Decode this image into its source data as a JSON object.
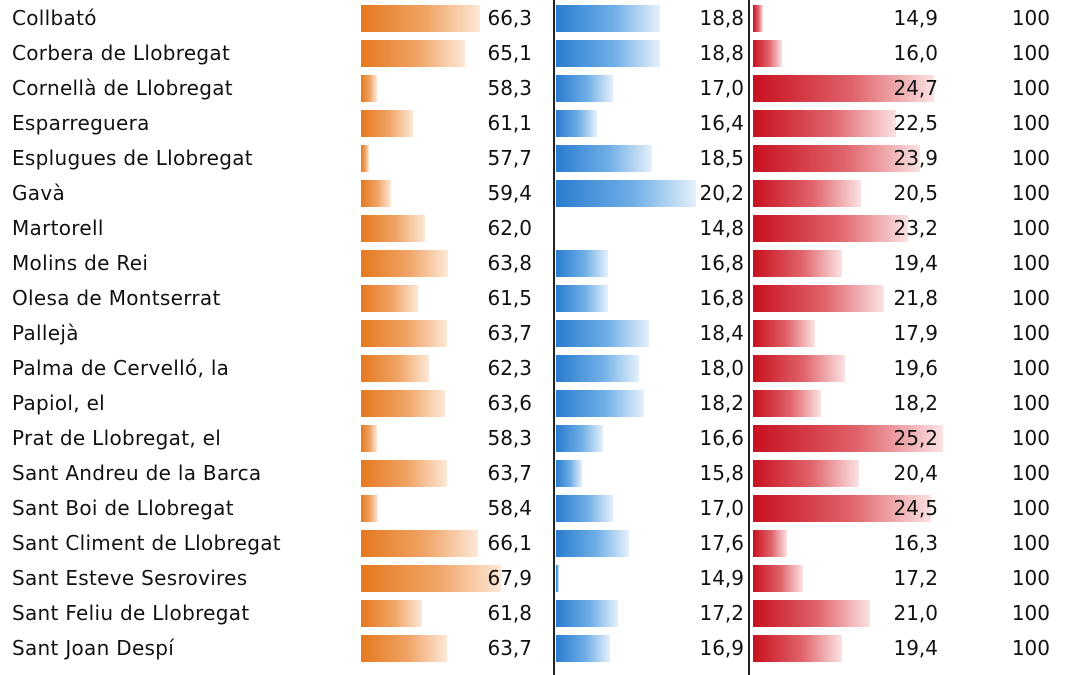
{
  "table": {
    "rows": [
      {
        "name": "Collbató",
        "c1": "66,3",
        "c2": "18,8",
        "c3": "14,9",
        "c4": "100"
      },
      {
        "name": "Corbera de Llobregat",
        "c1": "65,1",
        "c2": "18,8",
        "c3": "16,0",
        "c4": "100"
      },
      {
        "name": "Cornellà de Llobregat",
        "c1": "58,3",
        "c2": "17,0",
        "c3": "24,7",
        "c4": "100"
      },
      {
        "name": "Esparreguera",
        "c1": "61,1",
        "c2": "16,4",
        "c3": "22,5",
        "c4": "100"
      },
      {
        "name": "Esplugues de Llobregat",
        "c1": "57,7",
        "c2": "18,5",
        "c3": "23,9",
        "c4": "100"
      },
      {
        "name": "Gavà",
        "c1": "59,4",
        "c2": "20,2",
        "c3": "20,5",
        "c4": "100"
      },
      {
        "name": "Martorell",
        "c1": "62,0",
        "c2": "14,8",
        "c3": "23,2",
        "c4": "100"
      },
      {
        "name": "Molins de Rei",
        "c1": "63,8",
        "c2": "16,8",
        "c3": "19,4",
        "c4": "100"
      },
      {
        "name": "Olesa de Montserrat",
        "c1": "61,5",
        "c2": "16,8",
        "c3": "21,8",
        "c4": "100"
      },
      {
        "name": "Pallejà",
        "c1": "63,7",
        "c2": "18,4",
        "c3": "17,9",
        "c4": "100"
      },
      {
        "name": "Palma de Cervelló, la",
        "c1": "62,3",
        "c2": "18,0",
        "c3": "19,6",
        "c4": "100"
      },
      {
        "name": "Papiol, el",
        "c1": "63,6",
        "c2": "18,2",
        "c3": "18,2",
        "c4": "100"
      },
      {
        "name": "Prat de Llobregat, el",
        "c1": "58,3",
        "c2": "16,6",
        "c3": "25,2",
        "c4": "100"
      },
      {
        "name": "Sant Andreu de la Barca",
        "c1": "63,7",
        "c2": "15,8",
        "c3": "20,4",
        "c4": "100"
      },
      {
        "name": "Sant Boi de Llobregat",
        "c1": "58,4",
        "c2": "17,0",
        "c3": "24,5",
        "c4": "100"
      },
      {
        "name": "Sant Climent de Llobregat",
        "c1": "66,1",
        "c2": "17,6",
        "c3": "16,3",
        "c4": "100"
      },
      {
        "name": "Sant Esteve Sesrovires",
        "c1": "67,9",
        "c2": "14,9",
        "c3": "17,2",
        "c4": "100"
      },
      {
        "name": "Sant Feliu de Llobregat",
        "c1": "61,8",
        "c2": "17,2",
        "c3": "21,0",
        "c4": "100"
      },
      {
        "name": "Sant Joan Despí",
        "c1": "63,7",
        "c2": "16,9",
        "c3": "19,4",
        "c4": "100"
      }
    ]
  },
  "data_bar_scales": {
    "col1": {
      "min": 57.7,
      "max": 67.9,
      "color": "#e5781f"
    },
    "col2": {
      "min": 14.8,
      "max": 20.2,
      "color": "#2a7cd0"
    },
    "col3": {
      "min": 14.9,
      "max": 25.2,
      "color": "#c8101e"
    }
  }
}
